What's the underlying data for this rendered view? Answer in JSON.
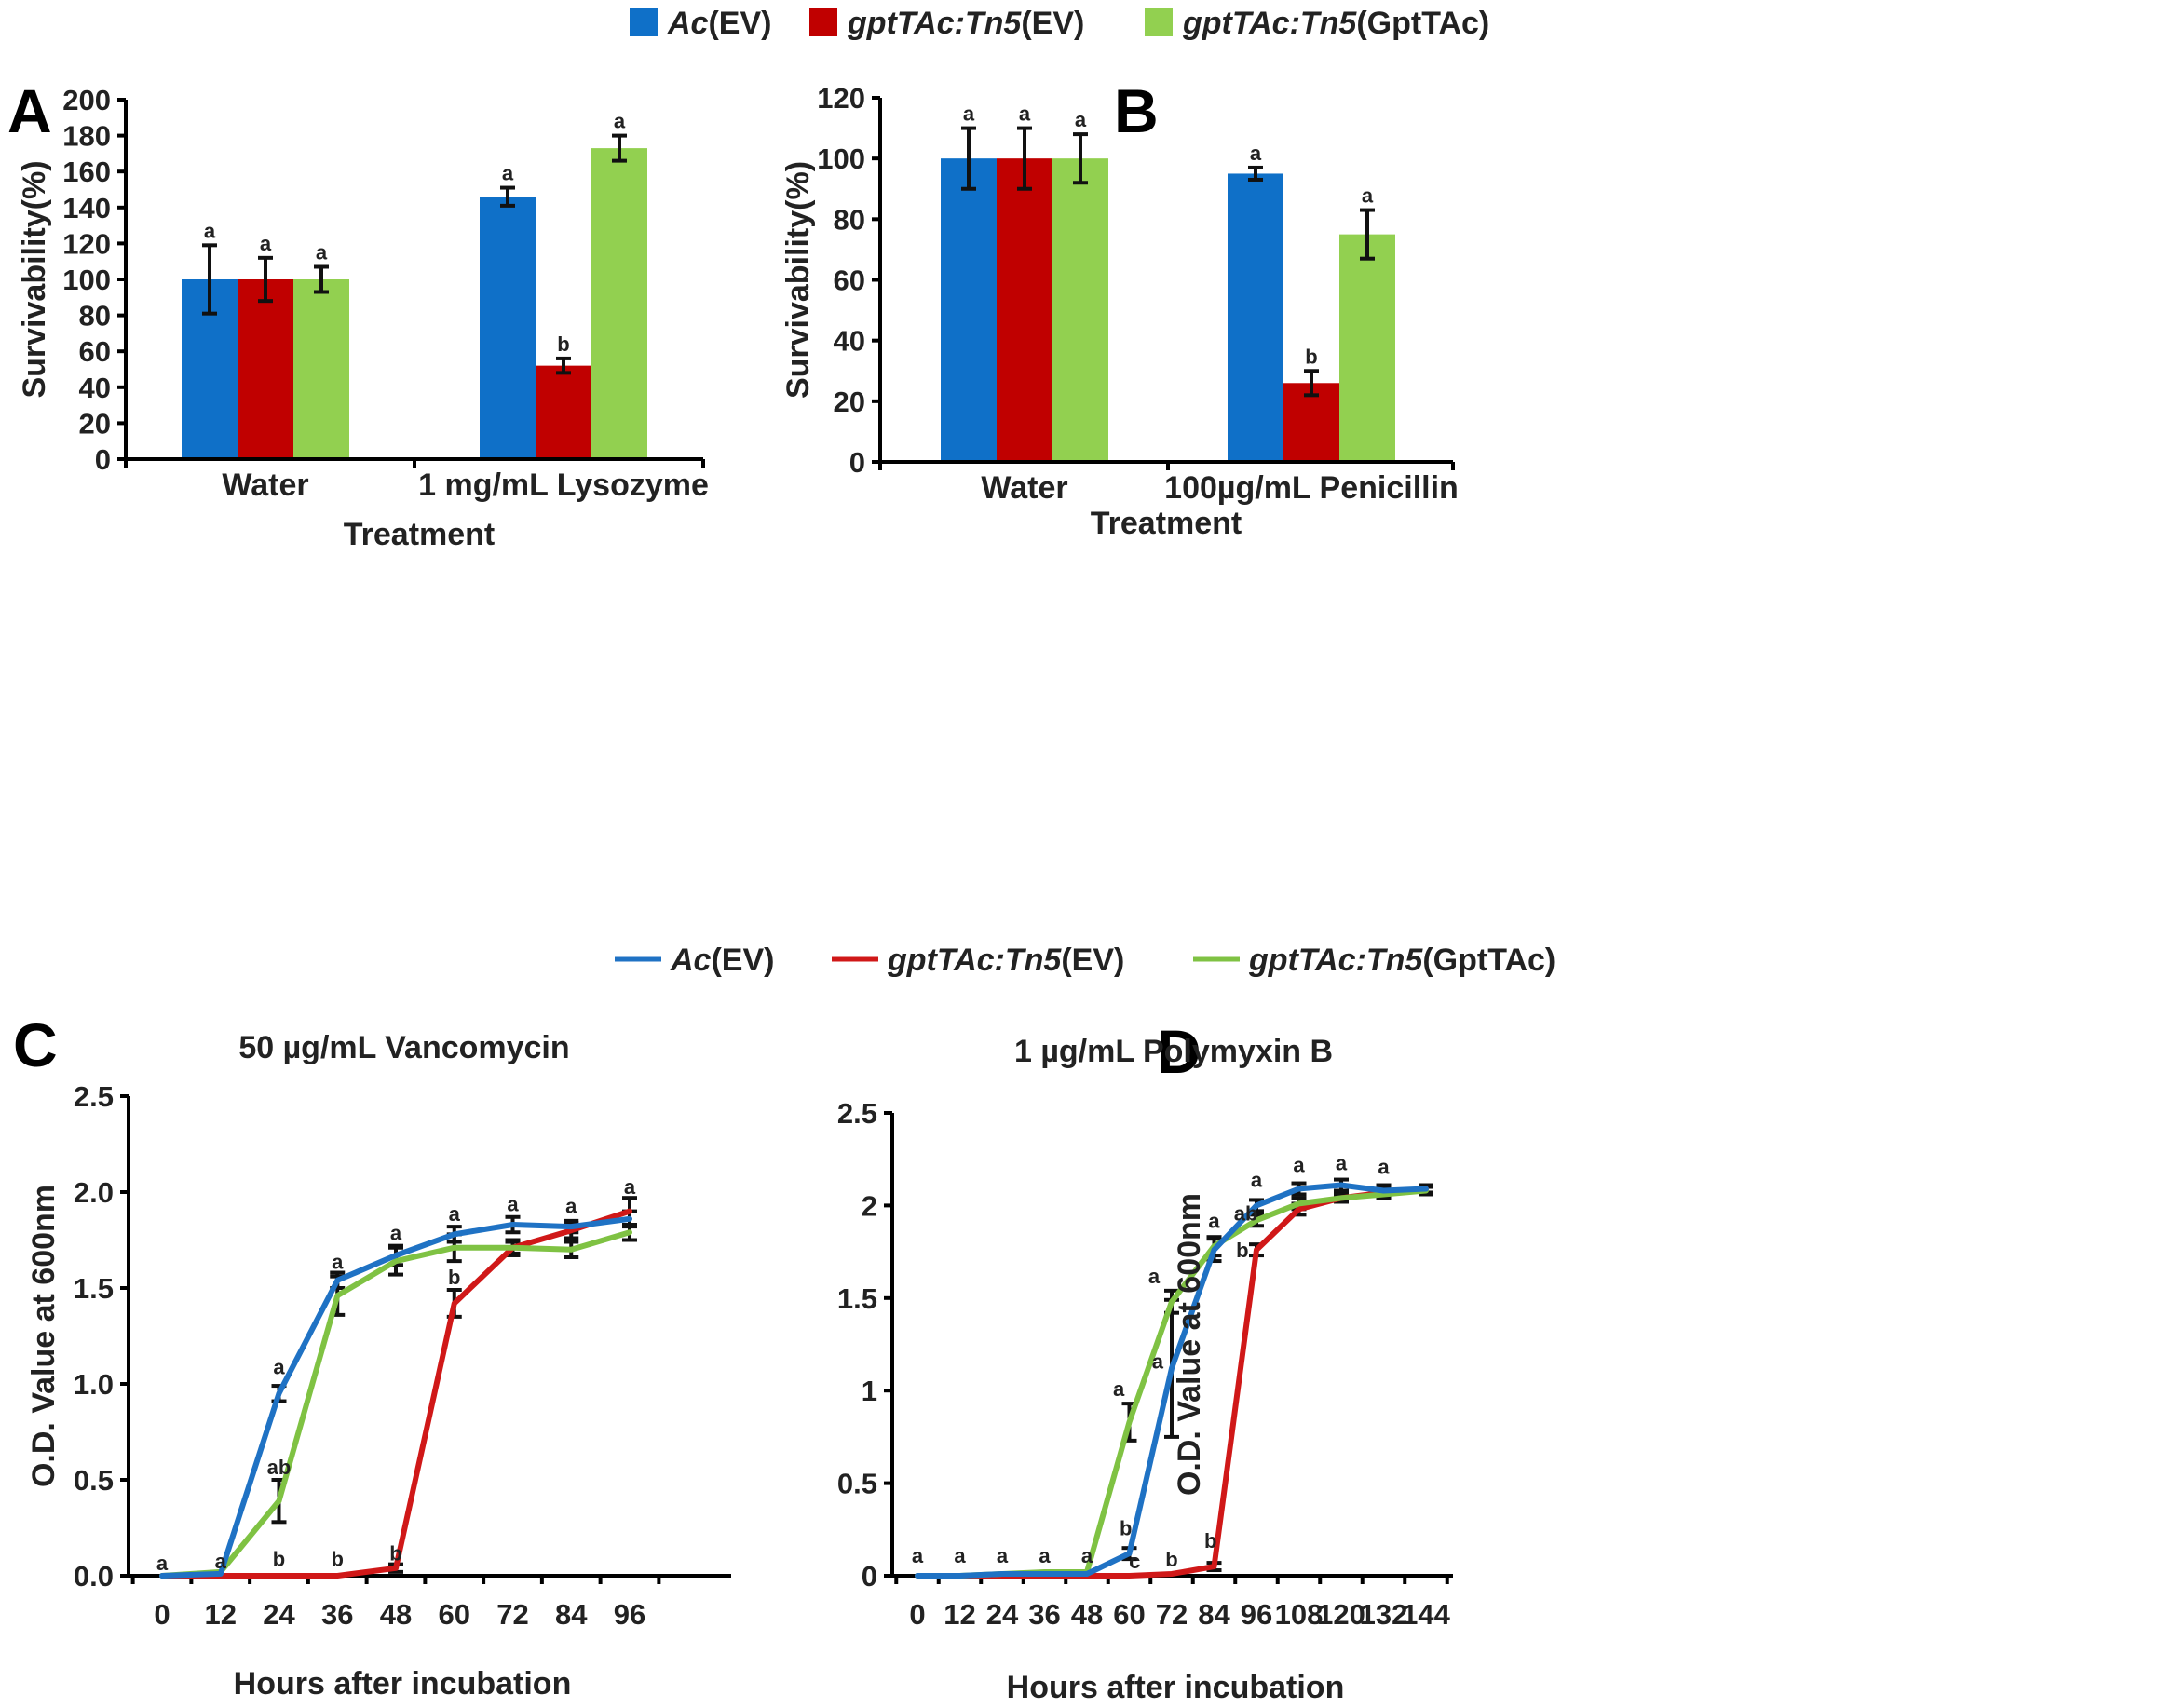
{
  "legend": {
    "items": [
      {
        "prefix": "Ac",
        "suffix": "(EV)",
        "color": "#0f70c8"
      },
      {
        "prefix": "gptTAc:Tn5",
        "suffix": "(EV)",
        "color": "#c00000"
      },
      {
        "prefix": "gptTAc:Tn5",
        "suffix": "(GptTAc)",
        "color": "#92d050"
      }
    ]
  },
  "chart_data": [
    {
      "id": "A",
      "panel_label": "A",
      "type": "bar",
      "xlabel": "Treatment",
      "ylabel": "Survivability(%)",
      "ylim": [
        0,
        200
      ],
      "yticks": [
        "0",
        "20",
        "40",
        "60",
        "80",
        "100",
        "120",
        "140",
        "160",
        "180",
        "200"
      ],
      "categories": [
        "Water",
        "1 mg/mL Lysozyme"
      ],
      "series": [
        {
          "name": "Ac(EV)",
          "color": "#0f70c8",
          "values": [
            100,
            146
          ],
          "errors": [
            19,
            5
          ],
          "sig": [
            "a",
            "a"
          ]
        },
        {
          "name": "gptTAc:Tn5(EV)",
          "color": "#c00000",
          "values": [
            100,
            52
          ],
          "errors": [
            12,
            4
          ],
          "sig": [
            "a",
            "b"
          ]
        },
        {
          "name": "gptTAc:Tn5(GptTAc)",
          "color": "#92d050",
          "values": [
            100,
            173
          ],
          "errors": [
            7,
            7
          ],
          "sig": [
            "a",
            "a"
          ]
        }
      ]
    },
    {
      "id": "B",
      "panel_label": "B",
      "type": "bar",
      "xlabel": "Treatment",
      "ylabel": "Survivability(%)",
      "ylim": [
        0,
        120
      ],
      "yticks": [
        "0",
        "20",
        "40",
        "60",
        "80",
        "100",
        "120"
      ],
      "categories": [
        "Water",
        "100µg/mL Penicillin"
      ],
      "series": [
        {
          "name": "Ac(EV)",
          "color": "#0f70c8",
          "values": [
            100,
            95
          ],
          "errors": [
            10,
            2
          ],
          "sig": [
            "a",
            "a"
          ]
        },
        {
          "name": "gptTAc:Tn5(EV)",
          "color": "#c00000",
          "values": [
            100,
            26
          ],
          "errors": [
            10,
            4
          ],
          "sig": [
            "a",
            "b"
          ]
        },
        {
          "name": "gptTAc:Tn5(GptTAc)",
          "color": "#92d050",
          "values": [
            100,
            75
          ],
          "errors": [
            8,
            8
          ],
          "sig": [
            "a",
            "a"
          ]
        }
      ]
    },
    {
      "id": "C",
      "panel_label": "C",
      "type": "line",
      "title": "50 µg/mL Vancomycin",
      "xlabel": "Hours after incubation",
      "ylabel": "O.D. Value at 600nm",
      "ylim": [
        0,
        2.5
      ],
      "yticks": [
        "0.0",
        "0.5",
        "1.0",
        "1.5",
        "2.0",
        "2.5"
      ],
      "x": [
        0,
        12,
        24,
        36,
        48,
        60,
        72,
        84,
        96
      ],
      "xticks": [
        "0",
        "12",
        "24",
        "36",
        "48",
        "60",
        "72",
        "84",
        "96"
      ],
      "series": [
        {
          "name": "Ac(EV)",
          "color": "#1f72c4",
          "values": [
            0.0,
            0.01,
            0.95,
            1.54,
            1.67,
            1.78,
            1.83,
            1.82,
            1.86
          ],
          "errors": [
            0,
            0,
            0.04,
            0.04,
            0.05,
            0.04,
            0.04,
            0.03,
            0.04
          ]
        },
        {
          "name": "gptTAc:Tn5(EV)",
          "color": "#d01818",
          "values": [
            0.0,
            0.0,
            0.0,
            0.0,
            0.04,
            1.42,
            1.71,
            1.8,
            1.9
          ],
          "errors": [
            0,
            0,
            0,
            0,
            0.02,
            0.07,
            0.03,
            0.04,
            0.07
          ]
        },
        {
          "name": "gptTAc:Tn5(GptTAc)",
          "color": "#7fc243",
          "values": [
            0.0,
            0.02,
            0.39,
            1.46,
            1.64,
            1.71,
            1.71,
            1.7,
            1.79
          ],
          "errors": [
            0,
            0,
            0.11,
            0.1,
            0.07,
            0.07,
            0.04,
            0.04,
            0.04
          ]
        }
      ],
      "annotations": [
        {
          "text": "a",
          "x": 0,
          "y": 0.03
        },
        {
          "text": "a",
          "x": 12,
          "y": 0.04
        },
        {
          "text": "a",
          "x": 24,
          "y": 1.05
        },
        {
          "text": "ab",
          "x": 24,
          "y": 0.53
        },
        {
          "text": "b",
          "x": 24,
          "y": 0.05
        },
        {
          "text": "a",
          "x": 36,
          "y": 1.6
        },
        {
          "text": "b",
          "x": 36,
          "y": 0.05
        },
        {
          "text": "a",
          "x": 48,
          "y": 1.75
        },
        {
          "text": "b",
          "x": 48,
          "y": 0.08
        },
        {
          "text": "a",
          "x": 60,
          "y": 1.85
        },
        {
          "text": "b",
          "x": 60,
          "y": 1.52
        },
        {
          "text": "a",
          "x": 72,
          "y": 1.9
        },
        {
          "text": "a",
          "x": 84,
          "y": 1.89
        },
        {
          "text": "a",
          "x": 96,
          "y": 1.99
        }
      ]
    },
    {
      "id": "D",
      "panel_label": "D",
      "type": "line",
      "title": "1 µg/mL Polymyxin B",
      "xlabel": "Hours after incubation",
      "ylabel": "O.D. Value at 600nm",
      "ylim": [
        0,
        2.5
      ],
      "yticks": [
        "0",
        "0.5",
        "1",
        "1.5",
        "2",
        "2.5"
      ],
      "x": [
        0,
        12,
        24,
        36,
        48,
        60,
        72,
        84,
        96,
        108,
        120,
        132,
        144
      ],
      "xticks": [
        "0",
        "12",
        "24",
        "36",
        "48",
        "60",
        "72",
        "84",
        "96",
        "108",
        "120",
        "132",
        "144"
      ],
      "series": [
        {
          "name": "Ac(EV)",
          "color": "#1f72c4",
          "values": [
            0.0,
            0.0,
            0.01,
            0.01,
            0.01,
            0.12,
            1.12,
            1.76,
            2.0,
            2.09,
            2.11,
            2.08,
            2.09
          ],
          "errors": [
            0,
            0,
            0,
            0,
            0,
            0.03,
            0.37,
            0.06,
            0.03,
            0.03,
            0.03,
            0.03,
            0.02
          ]
        },
        {
          "name": "gptTAc:Tn5(EV)",
          "color": "#d01818",
          "values": [
            0.0,
            0.0,
            0.0,
            0.0,
            0.0,
            0.0,
            0.01,
            0.05,
            1.76,
            1.98,
            2.04,
            2.07,
            2.09
          ],
          "errors": [
            0,
            0,
            0,
            0,
            0,
            0,
            0,
            0.02,
            0.03,
            0.03,
            0.02,
            0.02,
            0.02
          ]
        },
        {
          "name": "gptTAc:Tn5(GptTAc)",
          "color": "#7fc243",
          "values": [
            0.0,
            0.0,
            0.01,
            0.02,
            0.02,
            0.83,
            1.48,
            1.78,
            1.92,
            2.01,
            2.04,
            2.06,
            2.08
          ],
          "errors": [
            0,
            0,
            0,
            0,
            0,
            0.1,
            0.06,
            0.05,
            0.03,
            0.03,
            0.02,
            0.02,
            0.02
          ]
        }
      ],
      "annotations": [
        {
          "text": "a",
          "x": 0,
          "y": 0.07
        },
        {
          "text": "a",
          "x": 12,
          "y": 0.07
        },
        {
          "text": "a",
          "x": 24,
          "y": 0.07
        },
        {
          "text": "a",
          "x": 36,
          "y": 0.07
        },
        {
          "text": "a",
          "x": 48,
          "y": 0.07
        },
        {
          "text": "b",
          "x": 59,
          "y": 0.22
        },
        {
          "text": "c",
          "x": 61.5,
          "y": 0.04
        },
        {
          "text": "a",
          "x": 57,
          "y": 0.97
        },
        {
          "text": "a",
          "x": 67,
          "y": 1.58
        },
        {
          "text": "a",
          "x": 68,
          "y": 1.12
        },
        {
          "text": "b",
          "x": 72,
          "y": 0.05
        },
        {
          "text": "b",
          "x": 83,
          "y": 0.15
        },
        {
          "text": "a",
          "x": 84,
          "y": 1.88
        },
        {
          "text": "ab",
          "x": 93,
          "y": 1.92
        },
        {
          "text": "b",
          "x": 92,
          "y": 1.72
        },
        {
          "text": "a",
          "x": 96,
          "y": 2.1
        },
        {
          "text": "a",
          "x": 108,
          "y": 2.18
        },
        {
          "text": "a",
          "x": 120,
          "y": 2.19
        },
        {
          "text": "a",
          "x": 132,
          "y": 2.17
        }
      ]
    }
  ]
}
